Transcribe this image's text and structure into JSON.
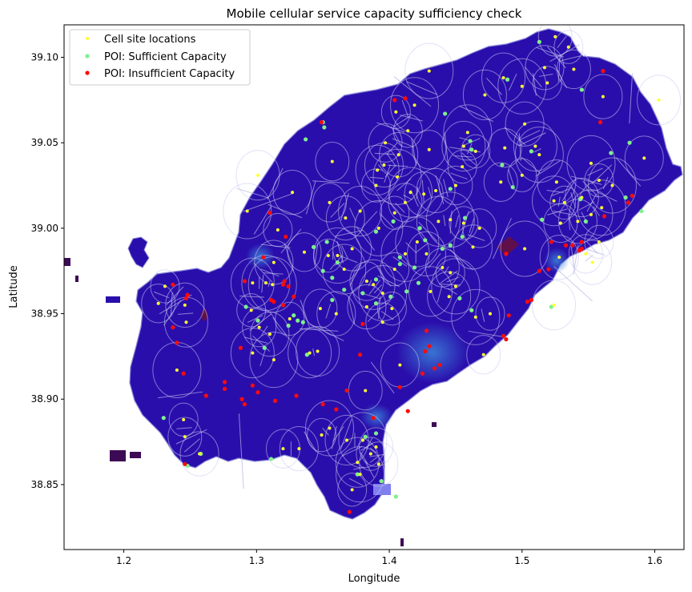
{
  "chart_data": {
    "type": "scatter",
    "title": "Mobile cellular service capacity sufficiency check",
    "xlabel": "Longitude",
    "ylabel": "Latitude",
    "xlim": [
      1.155,
      1.622
    ],
    "ylim": [
      38.812,
      39.119
    ],
    "xticks": [
      1.2,
      1.3,
      1.4,
      1.5,
      1.6
    ],
    "xtick_labels": [
      "1.2",
      "1.3",
      "1.4",
      "1.5",
      "1.6"
    ],
    "yticks": [
      38.85,
      38.9,
      38.95,
      39.0,
      39.05,
      39.1
    ],
    "ytick_labels": [
      "38.85",
      "38.90",
      "38.95",
      "39.00",
      "39.05",
      "39.10"
    ],
    "legend_position": "top-left",
    "colors": {
      "land": "#2a0eac",
      "cell_site": "#ffff33",
      "poi_sufficient": "#7ef08c",
      "poi_insufficient": "#ff0a0a",
      "voronoi_lines": "#b4b4e6",
      "coverage_rings": "#c8c8f0"
    },
    "series": [
      {
        "name": "Cell site locations",
        "points": [
          [
            1.535,
            39.106
          ],
          [
            1.525,
            39.112
          ],
          [
            1.517,
            39.094
          ],
          [
            1.486,
            39.088
          ],
          [
            1.5,
            39.083
          ],
          [
            1.519,
            39.085
          ],
          [
            1.539,
            39.093
          ],
          [
            1.561,
            39.077
          ],
          [
            1.472,
            39.078
          ],
          [
            1.43,
            39.092
          ],
          [
            1.405,
            39.068
          ],
          [
            1.397,
            39.05
          ],
          [
            1.396,
            39.037
          ],
          [
            1.391,
            39.034
          ],
          [
            1.419,
            39.072
          ],
          [
            1.414,
            39.057
          ],
          [
            1.43,
            39.046
          ],
          [
            1.407,
            39.043
          ],
          [
            1.456,
            39.048
          ],
          [
            1.459,
            39.056
          ],
          [
            1.465,
            39.045
          ],
          [
            1.487,
            39.047
          ],
          [
            1.502,
            39.061
          ],
          [
            1.51,
            39.048
          ],
          [
            1.513,
            39.043
          ],
          [
            1.5,
            39.031
          ],
          [
            1.484,
            39.027
          ],
          [
            1.526,
            39.027
          ],
          [
            1.524,
            39.016
          ],
          [
            1.552,
            39.038
          ],
          [
            1.558,
            39.028
          ],
          [
            1.545,
            39.018
          ],
          [
            1.592,
            39.041
          ],
          [
            1.603,
            39.075
          ],
          [
            1.568,
            39.025
          ],
          [
            1.532,
            39.015
          ],
          [
            1.529,
            39.003
          ],
          [
            1.542,
            39.004
          ],
          [
            1.552,
            39.008
          ],
          [
            1.56,
            39.012
          ],
          [
            1.558,
            38.992
          ],
          [
            1.548,
            38.985
          ],
          [
            1.528,
            38.983
          ],
          [
            1.524,
            38.955
          ],
          [
            1.502,
            38.988
          ],
          [
            1.455,
            39.036
          ],
          [
            1.45,
            39.025
          ],
          [
            1.435,
            39.022
          ],
          [
            1.416,
            39.021
          ],
          [
            1.406,
            39.03
          ],
          [
            1.39,
            39.025
          ],
          [
            1.357,
            39.039
          ],
          [
            1.327,
            39.021
          ],
          [
            1.301,
            39.031
          ],
          [
            1.293,
            39.01
          ],
          [
            1.316,
            38.999
          ],
          [
            1.355,
            39.015
          ],
          [
            1.367,
            39.006
          ],
          [
            1.378,
            39.01
          ],
          [
            1.392,
            39.0
          ],
          [
            1.404,
            39.009
          ],
          [
            1.412,
            39.015
          ],
          [
            1.426,
            39.02
          ],
          [
            1.437,
            39.004
          ],
          [
            1.446,
            39.005
          ],
          [
            1.456,
            39.003
          ],
          [
            1.468,
            39.0
          ],
          [
            1.463,
            38.989
          ],
          [
            1.421,
            38.992
          ],
          [
            1.412,
            38.985
          ],
          [
            1.404,
            38.976
          ],
          [
            1.383,
            38.969
          ],
          [
            1.372,
            38.988
          ],
          [
            1.366,
            38.976
          ],
          [
            1.361,
            38.984
          ],
          [
            1.354,
            38.984
          ],
          [
            1.336,
            38.986
          ],
          [
            1.313,
            38.98
          ],
          [
            1.297,
            38.968
          ],
          [
            1.312,
            38.967
          ],
          [
            1.296,
            38.952
          ],
          [
            1.302,
            38.942
          ],
          [
            1.31,
            38.938
          ],
          [
            1.297,
            38.927
          ],
          [
            1.313,
            38.923
          ],
          [
            1.325,
            38.947
          ],
          [
            1.348,
            38.953
          ],
          [
            1.36,
            38.95
          ],
          [
            1.388,
            38.967
          ],
          [
            1.395,
            38.962
          ],
          [
            1.402,
            38.953
          ],
          [
            1.395,
            38.945
          ],
          [
            1.383,
            38.954
          ],
          [
            1.346,
            38.928
          ],
          [
            1.307,
            38.968
          ],
          [
            1.231,
            38.966
          ],
          [
            1.226,
            38.956
          ],
          [
            1.246,
            38.955
          ],
          [
            1.247,
            38.945
          ],
          [
            1.24,
            38.917
          ],
          [
            1.245,
            38.888
          ],
          [
            1.246,
            38.878
          ],
          [
            1.257,
            38.868
          ],
          [
            1.34,
            38.927
          ],
          [
            1.355,
            38.883
          ],
          [
            1.349,
            38.879
          ],
          [
            1.32,
            38.871
          ],
          [
            1.332,
            38.871
          ],
          [
            1.368,
            38.876
          ],
          [
            1.38,
            38.876
          ],
          [
            1.386,
            38.868
          ],
          [
            1.39,
            38.872
          ],
          [
            1.392,
            38.862
          ],
          [
            1.376,
            38.863
          ],
          [
            1.378,
            38.856
          ],
          [
            1.372,
            38.847
          ],
          [
            1.382,
            38.905
          ],
          [
            1.408,
            38.92
          ],
          [
            1.445,
            38.96
          ],
          [
            1.45,
            38.966
          ],
          [
            1.446,
            38.974
          ],
          [
            1.44,
            38.977
          ],
          [
            1.428,
            38.985
          ],
          [
            1.431,
            38.963
          ],
          [
            1.465,
            38.948
          ],
          [
            1.476,
            38.95
          ],
          [
            1.471,
            38.926
          ],
          [
            1.553,
            38.98
          ]
        ]
      },
      {
        "name": "POI: Sufficient Capacity",
        "points": [
          [
            1.513,
            39.109
          ],
          [
            1.545,
            39.081
          ],
          [
            1.489,
            39.087
          ],
          [
            1.442,
            39.067
          ],
          [
            1.35,
            39.062
          ],
          [
            1.351,
            39.059
          ],
          [
            1.337,
            39.052
          ],
          [
            1.461,
            39.051
          ],
          [
            1.462,
            39.046
          ],
          [
            1.507,
            39.045
          ],
          [
            1.485,
            39.037
          ],
          [
            1.493,
            39.024
          ],
          [
            1.567,
            39.044
          ],
          [
            1.581,
            39.05
          ],
          [
            1.544,
            39.017
          ],
          [
            1.578,
            39.018
          ],
          [
            1.59,
            39.01
          ],
          [
            1.515,
            39.005
          ],
          [
            1.548,
            39.004
          ],
          [
            1.446,
            39.023
          ],
          [
            1.39,
            38.998
          ],
          [
            1.423,
            39.0
          ],
          [
            1.427,
            38.993
          ],
          [
            1.403,
            39.004
          ],
          [
            1.457,
            39.006
          ],
          [
            1.446,
            38.99
          ],
          [
            1.455,
            38.995
          ],
          [
            1.44,
            38.988
          ],
          [
            1.353,
            38.992
          ],
          [
            1.343,
            38.989
          ],
          [
            1.361,
            38.98
          ],
          [
            1.408,
            38.983
          ],
          [
            1.408,
            38.979
          ],
          [
            1.419,
            38.977
          ],
          [
            1.422,
            38.968
          ],
          [
            1.413,
            38.963
          ],
          [
            1.401,
            38.96
          ],
          [
            1.39,
            38.97
          ],
          [
            1.38,
            38.962
          ],
          [
            1.39,
            38.956
          ],
          [
            1.366,
            38.964
          ],
          [
            1.357,
            38.958
          ],
          [
            1.357,
            38.971
          ],
          [
            1.35,
            38.975
          ],
          [
            1.328,
            38.949
          ],
          [
            1.335,
            38.945
          ],
          [
            1.292,
            38.954
          ],
          [
            1.301,
            38.946
          ],
          [
            1.324,
            38.943
          ],
          [
            1.331,
            38.946
          ],
          [
            1.306,
            38.93
          ],
          [
            1.338,
            38.926
          ],
          [
            1.453,
            38.959
          ],
          [
            1.462,
            38.952
          ],
          [
            1.382,
            38.878
          ],
          [
            1.39,
            38.88
          ],
          [
            1.376,
            38.856
          ],
          [
            1.394,
            38.852
          ],
          [
            1.405,
            38.843
          ],
          [
            1.23,
            38.889
          ],
          [
            1.248,
            38.861
          ],
          [
            1.258,
            38.868
          ],
          [
            1.311,
            38.865
          ],
          [
            1.522,
            38.954
          ]
        ]
      },
      {
        "name": "POI: Insufficient Capacity",
        "points": [
          [
            1.561,
            39.092
          ],
          [
            1.559,
            39.062
          ],
          [
            1.412,
            39.076
          ],
          [
            1.404,
            39.075
          ],
          [
            1.349,
            39.062
          ],
          [
            1.583,
            39.019
          ],
          [
            1.58,
            39.015
          ],
          [
            1.562,
            39.007
          ],
          [
            1.545,
            38.992
          ],
          [
            1.538,
            38.99
          ],
          [
            1.533,
            38.99
          ],
          [
            1.545,
            38.988
          ],
          [
            1.522,
            38.992
          ],
          [
            1.543,
            38.987
          ],
          [
            1.52,
            38.976
          ],
          [
            1.488,
            38.985
          ],
          [
            1.513,
            38.975
          ],
          [
            1.507,
            38.958
          ],
          [
            1.504,
            38.957
          ],
          [
            1.49,
            38.949
          ],
          [
            1.486,
            38.937
          ],
          [
            1.488,
            38.935
          ],
          [
            1.438,
            38.92
          ],
          [
            1.434,
            38.918
          ],
          [
            1.427,
            38.928
          ],
          [
            1.43,
            38.931
          ],
          [
            1.425,
            38.915
          ],
          [
            1.414,
            38.893
          ],
          [
            1.408,
            38.907
          ],
          [
            1.388,
            38.889
          ],
          [
            1.368,
            38.905
          ],
          [
            1.36,
            38.894
          ],
          [
            1.35,
            38.897
          ],
          [
            1.33,
            38.902
          ],
          [
            1.314,
            38.899
          ],
          [
            1.301,
            38.904
          ],
          [
            1.297,
            38.908
          ],
          [
            1.291,
            38.897
          ],
          [
            1.289,
            38.9
          ],
          [
            1.276,
            38.91
          ],
          [
            1.276,
            38.906
          ],
          [
            1.262,
            38.902
          ],
          [
            1.245,
            38.915
          ],
          [
            1.24,
            38.933
          ],
          [
            1.237,
            38.942
          ],
          [
            1.237,
            38.967
          ],
          [
            1.247,
            38.959
          ],
          [
            1.248,
            38.961
          ],
          [
            1.288,
            38.93
          ],
          [
            1.311,
            38.958
          ],
          [
            1.313,
            38.957
          ],
          [
            1.32,
            38.955
          ],
          [
            1.32,
            38.967
          ],
          [
            1.324,
            38.966
          ],
          [
            1.328,
            38.96
          ],
          [
            1.321,
            38.969
          ],
          [
            1.322,
            38.995
          ],
          [
            1.31,
            39.009
          ],
          [
            1.305,
            38.983
          ],
          [
            1.291,
            38.969
          ],
          [
            1.37,
            38.834
          ],
          [
            1.428,
            38.94
          ],
          [
            1.38,
            38.944
          ],
          [
            1.378,
            38.926
          ],
          [
            1.246,
            38.862
          ]
        ]
      }
    ]
  }
}
